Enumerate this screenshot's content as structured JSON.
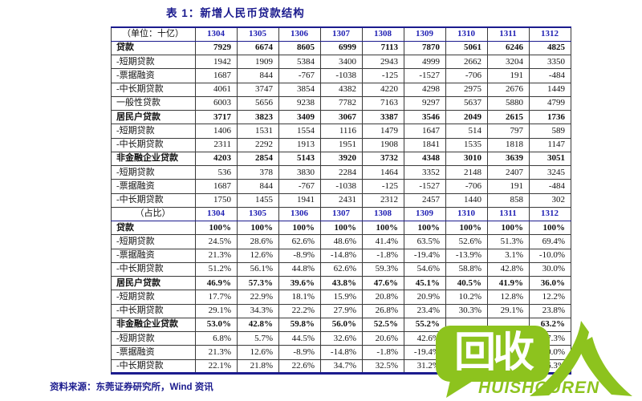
{
  "title": "表 1：新增人民币贷款结构",
  "source_note": "资料来源：东莞证券研究所，Wind 资讯",
  "colors": {
    "navy": "#1b1b8e",
    "hdr-blue": "#2323b4",
    "green": "#8dc31e"
  },
  "table": {
    "columns": [
      "1304",
      "1305",
      "1306",
      "1307",
      "1308",
      "1309",
      "1310",
      "1311",
      "1312"
    ],
    "band1": {
      "corner_label": "（单位：十亿）",
      "rows": [
        {
          "label": "贷款",
          "bold": true,
          "values": [
            "7929",
            "6674",
            "8605",
            "6999",
            "7113",
            "7870",
            "5061",
            "6246",
            "4825"
          ]
        },
        {
          "label": "-短期贷款",
          "bold": false,
          "values": [
            "1942",
            "1909",
            "5384",
            "3400",
            "2943",
            "4999",
            "2662",
            "3204",
            "3350"
          ]
        },
        {
          "label": "-票据融资",
          "bold": false,
          "values": [
            "1687",
            "844",
            "-767",
            "-1038",
            "-125",
            "-1527",
            "-706",
            "191",
            "-484"
          ]
        },
        {
          "label": "-中长期贷款",
          "bold": false,
          "values": [
            "4061",
            "3747",
            "3854",
            "4382",
            "4220",
            "4298",
            "2975",
            "2676",
            "1449"
          ]
        },
        {
          "label": "一般性贷款",
          "bold": false,
          "values": [
            "6003",
            "5656",
            "9238",
            "7782",
            "7163",
            "9297",
            "5637",
            "5880",
            "4799"
          ]
        },
        {
          "label": "居民户贷款",
          "bold": true,
          "values": [
            "3717",
            "3823",
            "3409",
            "3067",
            "3387",
            "3546",
            "2049",
            "2615",
            "1736"
          ]
        },
        {
          "label": "-短期贷款",
          "bold": false,
          "values": [
            "1406",
            "1531",
            "1554",
            "1116",
            "1479",
            "1647",
            "514",
            "797",
            "589"
          ]
        },
        {
          "label": "-中长期贷款",
          "bold": false,
          "values": [
            "2311",
            "2292",
            "1913",
            "1951",
            "1908",
            "1841",
            "1535",
            "1818",
            "1147"
          ]
        },
        {
          "label": "非金融企业贷款",
          "bold": true,
          "values": [
            "4203",
            "2854",
            "5143",
            "3920",
            "3732",
            "4348",
            "3010",
            "3639",
            "3051"
          ]
        },
        {
          "label": "-短期贷款",
          "bold": false,
          "values": [
            "536",
            "378",
            "3830",
            "2284",
            "1464",
            "3352",
            "2148",
            "2407",
            "3245"
          ]
        },
        {
          "label": "-票据融资",
          "bold": false,
          "values": [
            "1687",
            "844",
            "-767",
            "-1038",
            "-125",
            "-1527",
            "-706",
            "191",
            "-484"
          ]
        },
        {
          "label": "-中长期贷款",
          "bold": false,
          "values": [
            "1750",
            "1455",
            "1941",
            "2431",
            "2312",
            "2457",
            "1440",
            "858",
            "302"
          ]
        }
      ]
    },
    "band2": {
      "corner_label": "（占比）",
      "rows": [
        {
          "label": "贷款",
          "bold": true,
          "values": [
            "100%",
            "100%",
            "100%",
            "100%",
            "100%",
            "100%",
            "100%",
            "100%",
            "100%"
          ]
        },
        {
          "label": "-短期贷款",
          "bold": false,
          "values": [
            "24.5%",
            "28.6%",
            "62.6%",
            "48.6%",
            "41.4%",
            "63.5%",
            "52.6%",
            "51.3%",
            "69.4%"
          ]
        },
        {
          "label": "-票据融资",
          "bold": false,
          "values": [
            "21.3%",
            "12.6%",
            "-8.9%",
            "-14.8%",
            "-1.8%",
            "-19.4%",
            "-13.9%",
            "3.1%",
            "-10.0%"
          ]
        },
        {
          "label": "-中长期贷款",
          "bold": false,
          "values": [
            "51.2%",
            "56.1%",
            "44.8%",
            "62.6%",
            "59.3%",
            "54.6%",
            "58.8%",
            "42.8%",
            "30.0%"
          ]
        },
        {
          "label": "居民户贷款",
          "bold": true,
          "values": [
            "46.9%",
            "57.3%",
            "39.6%",
            "43.8%",
            "47.6%",
            "45.1%",
            "40.5%",
            "41.9%",
            "36.0%"
          ]
        },
        {
          "label": "-短期贷款",
          "bold": false,
          "values": [
            "17.7%",
            "22.9%",
            "18.1%",
            "15.9%",
            "20.8%",
            "20.9%",
            "10.2%",
            "12.8%",
            "12.2%"
          ]
        },
        {
          "label": "-中长期贷款",
          "bold": false,
          "values": [
            "29.1%",
            "34.3%",
            "22.2%",
            "27.9%",
            "26.8%",
            "23.4%",
            "30.3%",
            "29.1%",
            "23.8%"
          ]
        },
        {
          "label": "非金融企业贷款",
          "bold": true,
          "values": [
            "53.0%",
            "42.8%",
            "59.8%",
            "56.0%",
            "52.5%",
            "55.2%",
            "",
            "",
            "63.2%"
          ]
        },
        {
          "label": "-短期贷款",
          "bold": false,
          "values": [
            "6.8%",
            "5.7%",
            "44.5%",
            "32.6%",
            "20.6%",
            "42.6%",
            "",
            "",
            "67.3%"
          ]
        },
        {
          "label": "-票据融资",
          "bold": false,
          "values": [
            "21.3%",
            "12.6%",
            "-8.9%",
            "-14.8%",
            "-1.8%",
            "-19.4%",
            "",
            "",
            "-10.0%"
          ]
        },
        {
          "label": "-中长期贷款",
          "bold": false,
          "values": [
            "22.1%",
            "21.8%",
            "22.6%",
            "34.7%",
            "32.5%",
            "31.2%",
            "",
            "",
            "6.3%"
          ]
        }
      ]
    }
  },
  "watermark": {
    "cjk_text": "回收",
    "person_glyph_name": "person-brush-glyph",
    "latin_text": "HUISHOUREN"
  }
}
